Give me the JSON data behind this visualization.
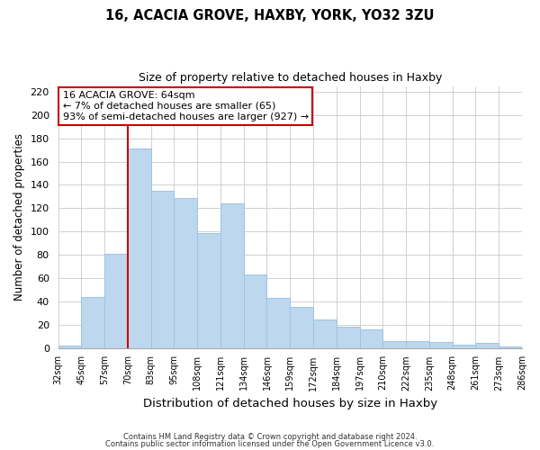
{
  "title": "16, ACACIA GROVE, HAXBY, YORK, YO32 3ZU",
  "subtitle": "Size of property relative to detached houses in Haxby",
  "xlabel": "Distribution of detached houses by size in Haxby",
  "ylabel": "Number of detached properties",
  "bar_color": "#bdd7ee",
  "bar_edge_color": "#9dc3e6",
  "background_color": "#ffffff",
  "grid_color": "#d0d0d0",
  "bin_labels": [
    "32sqm",
    "45sqm",
    "57sqm",
    "70sqm",
    "83sqm",
    "95sqm",
    "108sqm",
    "121sqm",
    "134sqm",
    "146sqm",
    "159sqm",
    "172sqm",
    "184sqm",
    "197sqm",
    "210sqm",
    "222sqm",
    "235sqm",
    "248sqm",
    "261sqm",
    "273sqm",
    "286sqm"
  ],
  "bar_heights": [
    2,
    44,
    81,
    171,
    135,
    129,
    99,
    124,
    63,
    43,
    35,
    24,
    18,
    16,
    6,
    6,
    5,
    3,
    4,
    1
  ],
  "ylim": [
    0,
    225
  ],
  "yticks": [
    0,
    20,
    40,
    60,
    80,
    100,
    120,
    140,
    160,
    180,
    200,
    220
  ],
  "property_line_color": "#cc0000",
  "annotation_title": "16 ACACIA GROVE: 64sqm",
  "annotation_line1": "← 7% of detached houses are smaller (65)",
  "annotation_line2": "93% of semi-detached houses are larger (927) →",
  "annotation_box_color": "#ffffff",
  "annotation_box_edge": "#cc0000",
  "footnote1": "Contains HM Land Registry data © Crown copyright and database right 2024.",
  "footnote2": "Contains public sector information licensed under the Open Government Licence v3.0."
}
